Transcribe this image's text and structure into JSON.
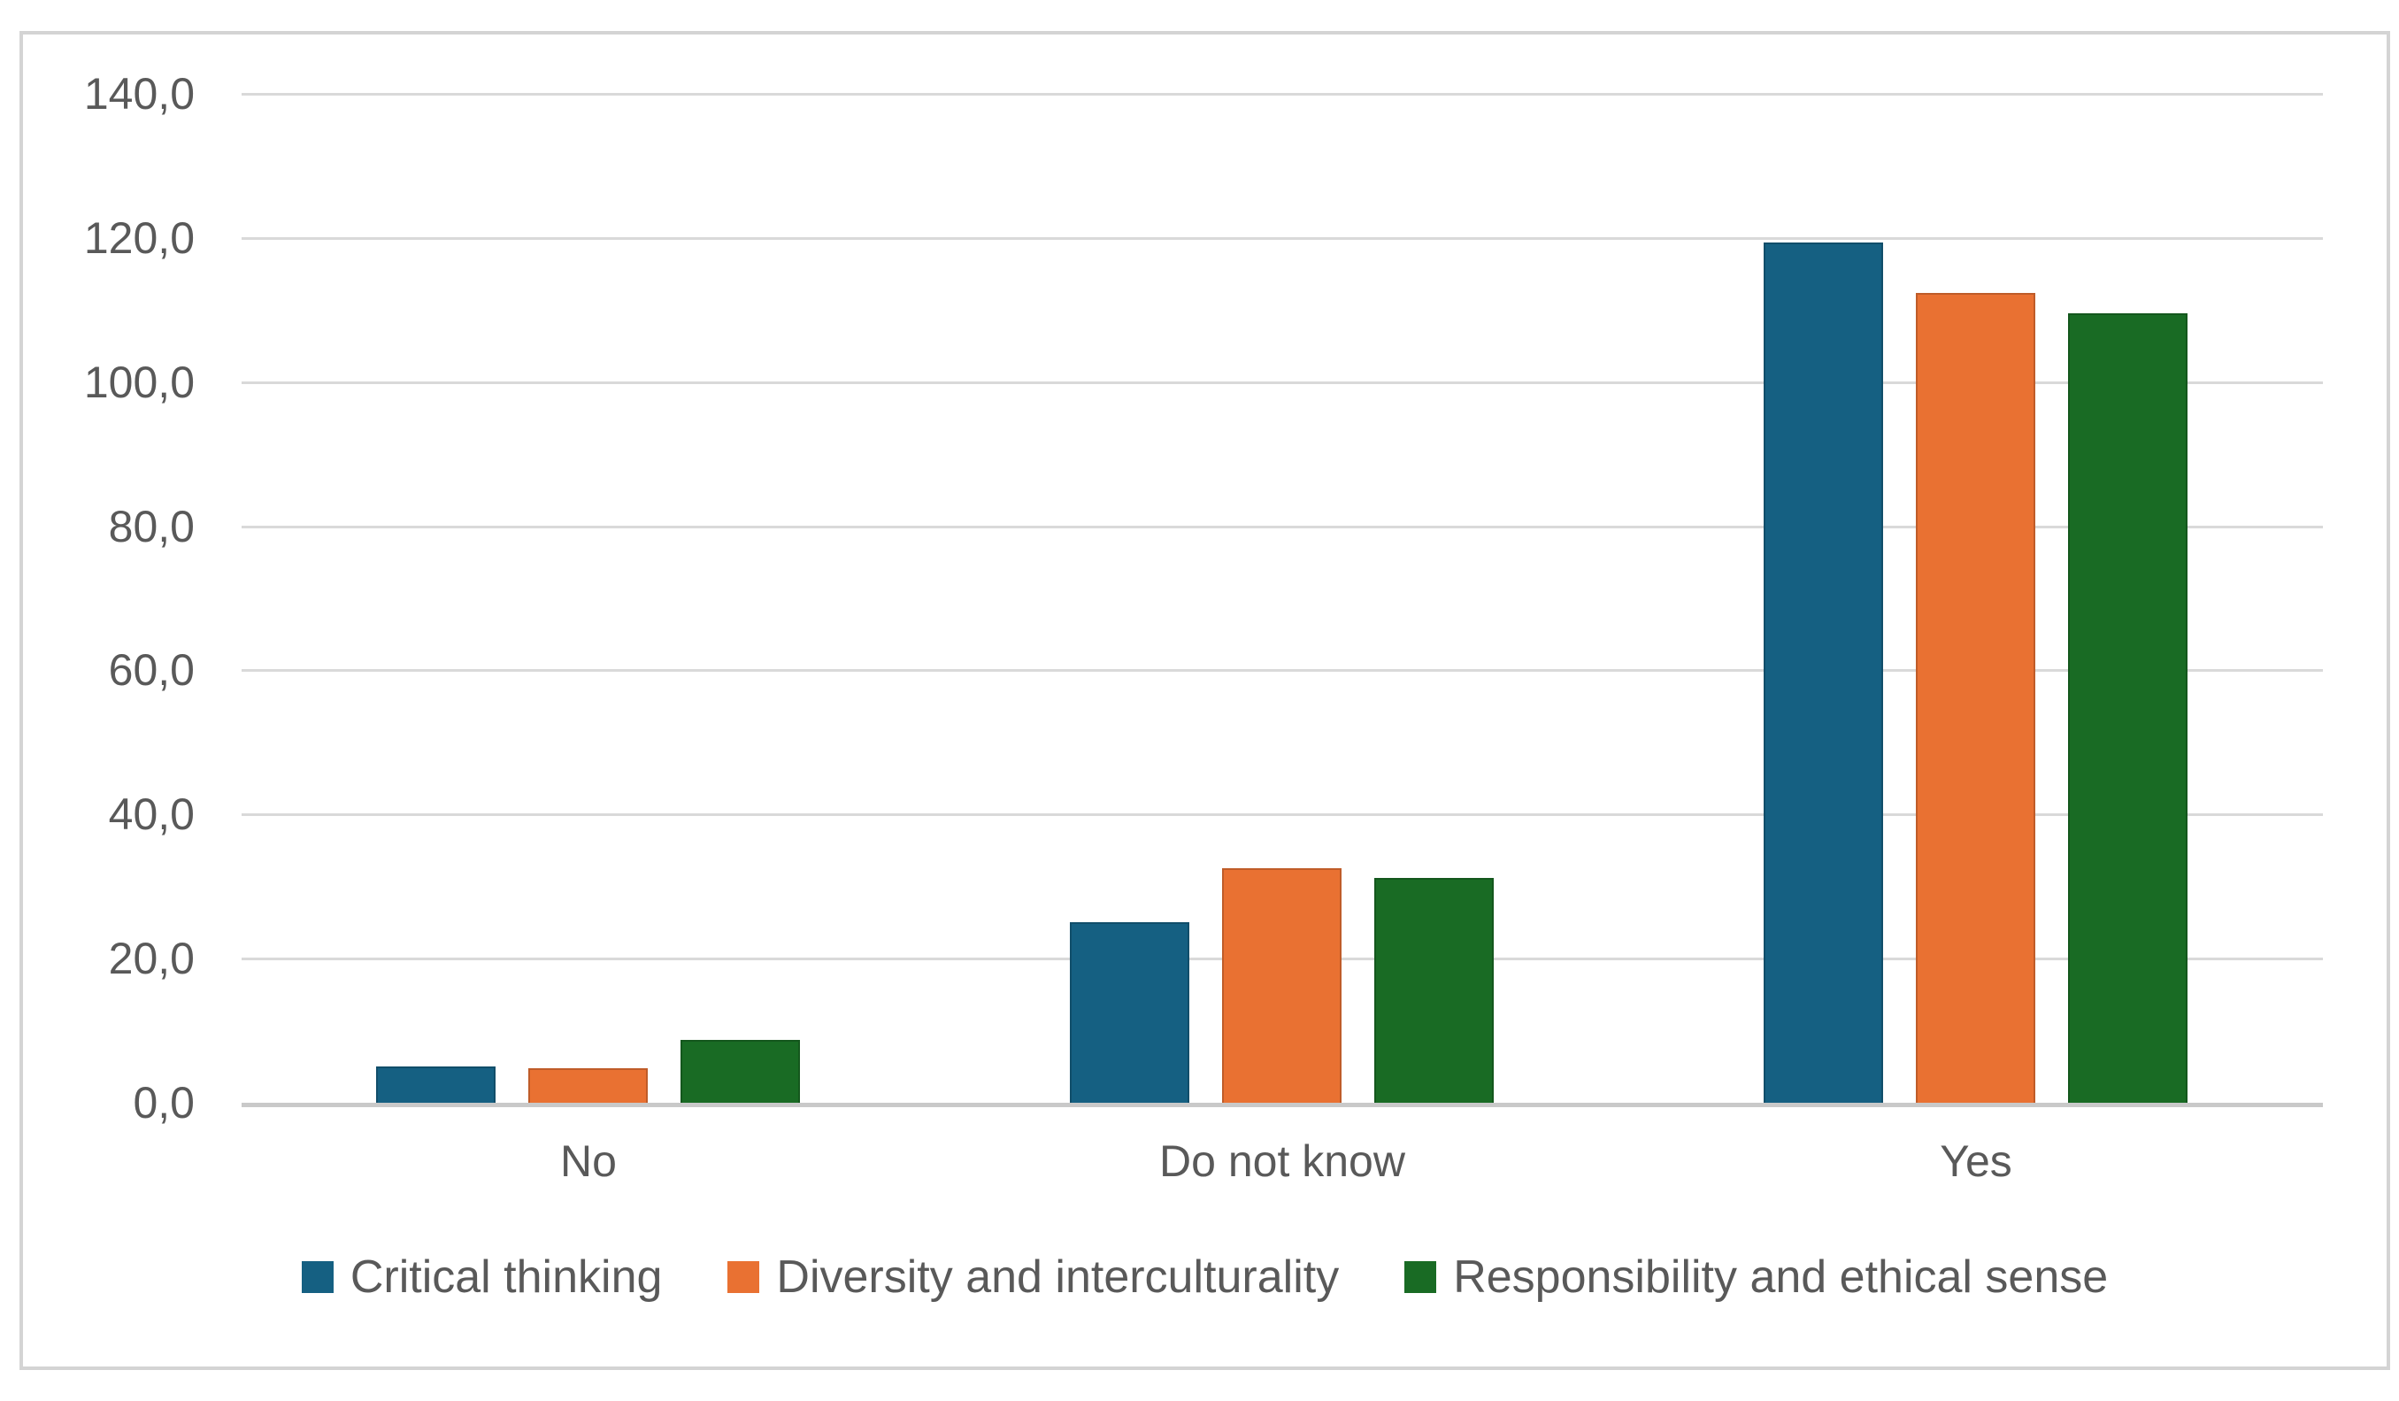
{
  "chart_data": {
    "type": "bar",
    "title": "",
    "xlabel": "",
    "ylabel": "",
    "categories": [
      "No",
      "Do not know",
      "Yes"
    ],
    "series": [
      {
        "name": "Critical thinking",
        "color": "#156082",
        "values": [
          5.0,
          25.0,
          119.4
        ]
      },
      {
        "name": "Diversity and interculturality",
        "color": "#E97132",
        "values": [
          4.8,
          32.5,
          112.4
        ]
      },
      {
        "name": "Responsibility and ethical sense",
        "color": "#196B24",
        "values": [
          8.7,
          31.2,
          109.6
        ]
      }
    ],
    "ylim": [
      0,
      140
    ],
    "yticks": [
      0,
      20,
      40,
      60,
      80,
      100,
      120,
      140
    ],
    "ytick_labels": [
      "0,0",
      "20,0",
      "40,0",
      "60,0",
      "80,0",
      "100,0",
      "120,0",
      "140,0"
    ],
    "grid": true,
    "legend_position": "bottom",
    "colors": {
      "text": "#595959",
      "gridline": "#D9D9D9",
      "axis_line": "#C9C9C9",
      "frame_border": "#D4D4D4",
      "background": "#FFFFFF"
    }
  }
}
